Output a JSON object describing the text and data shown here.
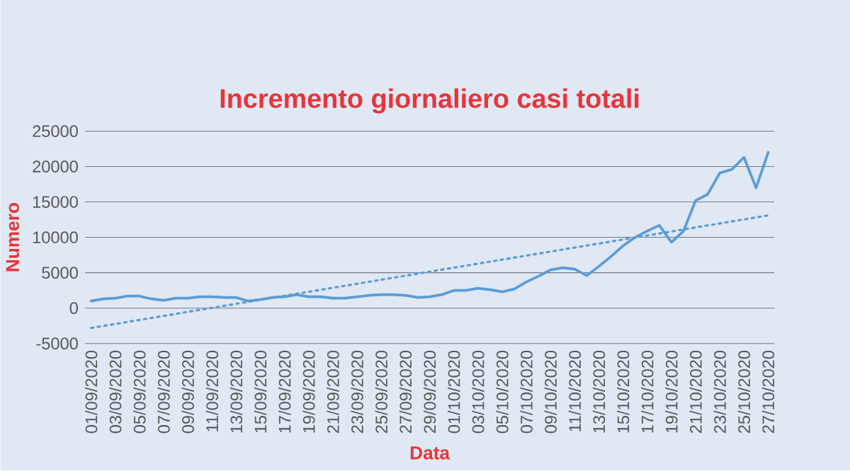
{
  "chart_data": {
    "type": "line",
    "title": "Incremento giornaliero casi totali",
    "xlabel": "Data",
    "ylabel": "Numero",
    "categories": [
      "01/09/2020",
      null,
      "03/09/2020",
      null,
      "05/09/2020",
      null,
      "07/09/2020",
      null,
      "09/09/2020",
      null,
      "11/09/2020",
      null,
      "13/09/2020",
      null,
      "15/09/2020",
      null,
      "17/09/2020",
      null,
      "19/09/2020",
      null,
      "21/09/2020",
      null,
      "23/09/2020",
      null,
      "25/09/2020",
      null,
      "27/09/2020",
      null,
      "29/09/2020",
      null,
      "01/10/2020",
      null,
      "03/10/2020",
      null,
      "05/10/2020",
      null,
      "07/10/2020",
      null,
      "09/10/2020",
      null,
      "11/10/2020",
      null,
      "13/10/2020",
      null,
      "15/10/2020",
      null,
      "17/10/2020",
      null,
      "19/10/2020",
      null,
      "21/10/2020",
      null,
      "23/10/2020",
      null,
      "25/10/2020",
      null,
      "27/10/2020"
    ],
    "series": [
      {
        "color": "#5b9bd5",
        "values": [
          1000,
          1300,
          1400,
          1700,
          1700,
          1300,
          1100,
          1400,
          1400,
          1600,
          1600,
          1500,
          1500,
          1000,
          1200,
          1500,
          1600,
          1900,
          1600,
          1600,
          1400,
          1400,
          1600,
          1800,
          1900,
          1900,
          1800,
          1500,
          1600,
          1900,
          2500,
          2500,
          2800,
          2600,
          2300,
          2700,
          3700,
          4500,
          5400,
          5700,
          5500,
          4600,
          5900,
          7300,
          8800,
          10000,
          10900,
          11700,
          9300,
          10900,
          15200,
          16100,
          19100,
          19600,
          21300,
          17000,
          22000
        ]
      },
      {
        "color": "#5b9bd5",
        "type": "line",
        "line_style": "dotted",
        "x": [
          "01/09/2020",
          "27/10/2020"
        ],
        "values": [
          -2800,
          13100
        ]
      }
    ],
    "ylim": [
      -5000,
      25000
    ],
    "yticks": [
      -5000,
      0,
      5000,
      10000,
      15000,
      20000,
      25000
    ],
    "grid": "y",
    "line_style": "solid",
    "marker": "none"
  }
}
